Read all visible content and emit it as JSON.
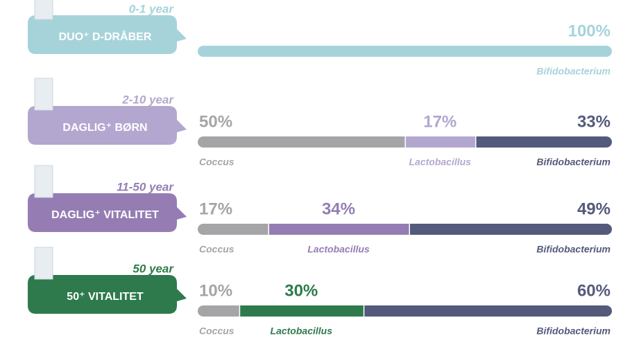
{
  "chart_data": {
    "type": "stacked-bar-rows",
    "rows": [
      {
        "age": "0-1 year",
        "product": "DUO⁺ D-DRÅBER",
        "color": "#a6d3da",
        "segments": [
          {
            "name": "Bifidobacterium",
            "value": 100,
            "value_label": "100%",
            "color": "#a6d3da"
          }
        ]
      },
      {
        "age": "2-10 year",
        "product": "DAGLIG⁺ BØRN",
        "color": "#b3a7d0",
        "segments": [
          {
            "name": "Coccus",
            "value": 50,
            "value_label": "50%",
            "color": "#a5a5a8"
          },
          {
            "name": "Lactobacillus",
            "value": 17,
            "value_label": "17%",
            "color": "#b3a7d0"
          },
          {
            "name": "Bifidobacterium",
            "value": 33,
            "value_label": "33%",
            "color": "#535a7b"
          }
        ]
      },
      {
        "age": "11-50 year",
        "product": "DAGLIG⁺ VITALITET",
        "color": "#957db3",
        "segments": [
          {
            "name": "Coccus",
            "value": 17,
            "value_label": "17%",
            "color": "#a5a5a8"
          },
          {
            "name": "Lactobacillus",
            "value": 34,
            "value_label": "34%",
            "color": "#957db3"
          },
          {
            "name": "Bifidobacterium",
            "value": 49,
            "value_label": "49%",
            "color": "#535a7b"
          }
        ]
      },
      {
        "age": "50 year",
        "product": "50⁺ VITALITET",
        "color": "#2e7a4c",
        "segments": [
          {
            "name": "Coccus",
            "value": 10,
            "value_label": "10%",
            "color": "#a5a5a8"
          },
          {
            "name": "Lactobacillus",
            "value": 30,
            "value_label": "30%",
            "color": "#2e7a4c"
          },
          {
            "name": "Bifidobacterium",
            "value": 60,
            "value_label": "60%",
            "color": "#535a7b"
          }
        ]
      }
    ]
  }
}
